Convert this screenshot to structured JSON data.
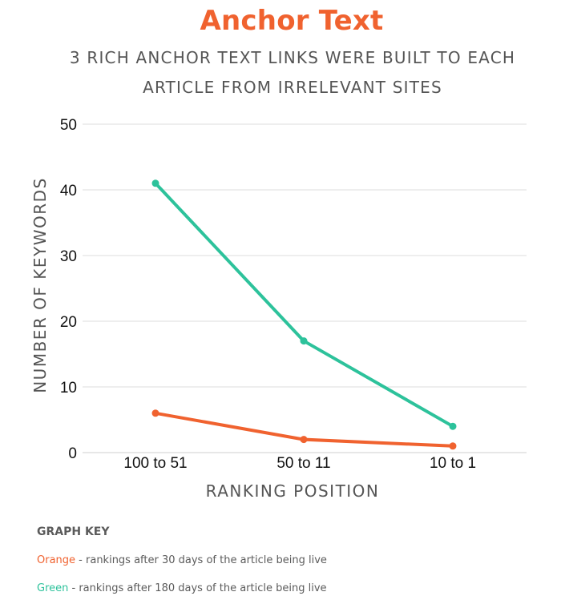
{
  "chart_data": {
    "type": "line",
    "title": "Anchor Text",
    "subtitle": [
      "3 RICH ANCHOR TEXT LINKS WERE BUILT TO EACH",
      "ARTICLE FROM IRRELEVANT SITES"
    ],
    "xlabel": "RANKING POSITION",
    "ylabel": "NUMBER OF KEYWORDS",
    "categories": [
      "100 to 51",
      "50 to 11",
      "10 to 1"
    ],
    "ylim": [
      0,
      50
    ],
    "yticks": [
      0,
      10,
      20,
      30,
      40,
      50
    ],
    "grid": true,
    "series": [
      {
        "name": "Orange",
        "color": "#f0622f",
        "values": [
          6,
          2,
          1
        ]
      },
      {
        "name": "Green",
        "color": "#2dc29b",
        "values": [
          41,
          17,
          4
        ]
      }
    ]
  },
  "key": {
    "title": "GRAPH KEY",
    "orange_word": "Orange",
    "orange_desc": " - rankings after 30 days of the article being live",
    "green_word": "Green",
    "green_desc": " - rankings after 180 days of the article being live"
  }
}
